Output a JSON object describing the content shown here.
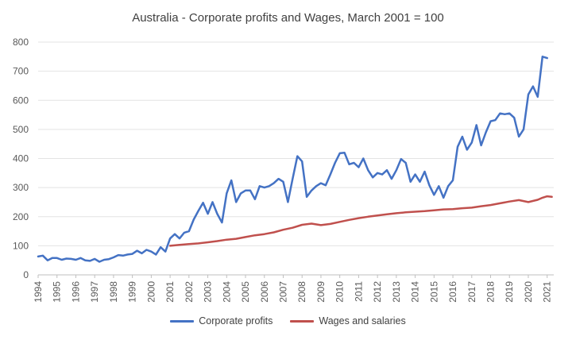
{
  "chart_data": {
    "type": "line",
    "title": "Australia - Corporate profits and Wages, March 2001 = 100",
    "xlabel": "",
    "ylabel": "",
    "ylim": [
      0,
      800
    ],
    "yticks": [
      0,
      100,
      200,
      300,
      400,
      500,
      600,
      700,
      800
    ],
    "x_range": [
      1994,
      2021.35
    ],
    "xticks": [
      "1994",
      "1995",
      "1996",
      "1997",
      "1998",
      "1999",
      "2000",
      "2001",
      "2002",
      "2003",
      "2004",
      "2005",
      "2006",
      "2007",
      "2008",
      "2009",
      "2010",
      "2011",
      "2012",
      "2013",
      "2014",
      "2015",
      "2016",
      "2017",
      "2018",
      "2019",
      "2020",
      "2021"
    ],
    "grid": "horizontal",
    "legend_position": "bottom",
    "series": [
      {
        "name": "Corporate profits",
        "color": "#4472c4",
        "points": [
          [
            1994.0,
            63
          ],
          [
            1994.25,
            66
          ],
          [
            1994.5,
            50
          ],
          [
            1994.75,
            58
          ],
          [
            1995.0,
            58
          ],
          [
            1995.25,
            52
          ],
          [
            1995.5,
            56
          ],
          [
            1995.75,
            55
          ],
          [
            1996.0,
            52
          ],
          [
            1996.25,
            58
          ],
          [
            1996.5,
            50
          ],
          [
            1996.75,
            48
          ],
          [
            1997.0,
            55
          ],
          [
            1997.25,
            45
          ],
          [
            1997.5,
            52
          ],
          [
            1997.75,
            54
          ],
          [
            1998.0,
            60
          ],
          [
            1998.25,
            68
          ],
          [
            1998.5,
            66
          ],
          [
            1998.75,
            70
          ],
          [
            1999.0,
            72
          ],
          [
            1999.25,
            83
          ],
          [
            1999.5,
            74
          ],
          [
            1999.75,
            86
          ],
          [
            2000.0,
            80
          ],
          [
            2000.25,
            70
          ],
          [
            2000.5,
            95
          ],
          [
            2000.75,
            80
          ],
          [
            2001.0,
            125
          ],
          [
            2001.25,
            140
          ],
          [
            2001.5,
            125
          ],
          [
            2001.75,
            145
          ],
          [
            2002.0,
            150
          ],
          [
            2002.25,
            190
          ],
          [
            2002.5,
            220
          ],
          [
            2002.75,
            248
          ],
          [
            2003.0,
            210
          ],
          [
            2003.25,
            250
          ],
          [
            2003.5,
            210
          ],
          [
            2003.75,
            180
          ],
          [
            2004.0,
            280
          ],
          [
            2004.25,
            325
          ],
          [
            2004.5,
            250
          ],
          [
            2004.75,
            280
          ],
          [
            2005.0,
            290
          ],
          [
            2005.25,
            290
          ],
          [
            2005.5,
            260
          ],
          [
            2005.75,
            305
          ],
          [
            2006.0,
            300
          ],
          [
            2006.25,
            305
          ],
          [
            2006.5,
            315
          ],
          [
            2006.75,
            330
          ],
          [
            2007.0,
            320
          ],
          [
            2007.25,
            250
          ],
          [
            2007.5,
            330
          ],
          [
            2007.75,
            408
          ],
          [
            2008.0,
            390
          ],
          [
            2008.25,
            268
          ],
          [
            2008.5,
            290
          ],
          [
            2008.75,
            305
          ],
          [
            2009.0,
            315
          ],
          [
            2009.25,
            308
          ],
          [
            2009.5,
            345
          ],
          [
            2009.75,
            385
          ],
          [
            2010.0,
            418
          ],
          [
            2010.25,
            420
          ],
          [
            2010.5,
            380
          ],
          [
            2010.75,
            385
          ],
          [
            2011.0,
            370
          ],
          [
            2011.25,
            400
          ],
          [
            2011.5,
            360
          ],
          [
            2011.75,
            335
          ],
          [
            2012.0,
            350
          ],
          [
            2012.25,
            345
          ],
          [
            2012.5,
            360
          ],
          [
            2012.75,
            330
          ],
          [
            2013.0,
            360
          ],
          [
            2013.25,
            398
          ],
          [
            2013.5,
            385
          ],
          [
            2013.75,
            320
          ],
          [
            2014.0,
            345
          ],
          [
            2014.25,
            320
          ],
          [
            2014.5,
            355
          ],
          [
            2014.75,
            308
          ],
          [
            2015.0,
            275
          ],
          [
            2015.25,
            305
          ],
          [
            2015.5,
            265
          ],
          [
            2015.75,
            305
          ],
          [
            2016.0,
            325
          ],
          [
            2016.25,
            440
          ],
          [
            2016.5,
            475
          ],
          [
            2016.75,
            430
          ],
          [
            2017.0,
            455
          ],
          [
            2017.25,
            515
          ],
          [
            2017.5,
            445
          ],
          [
            2017.75,
            490
          ],
          [
            2018.0,
            528
          ],
          [
            2018.25,
            532
          ],
          [
            2018.5,
            555
          ],
          [
            2018.75,
            552
          ],
          [
            2019.0,
            555
          ],
          [
            2019.25,
            540
          ],
          [
            2019.5,
            475
          ],
          [
            2019.75,
            500
          ],
          [
            2020.0,
            620
          ],
          [
            2020.25,
            648
          ],
          [
            2020.5,
            612
          ],
          [
            2020.75,
            750
          ],
          [
            2021.0,
            745
          ]
        ]
      },
      {
        "name": "Wages and salaries",
        "color": "#c0504d",
        "points": [
          [
            2001.0,
            100
          ],
          [
            2001.5,
            103
          ],
          [
            2002.0,
            106
          ],
          [
            2002.5,
            108
          ],
          [
            2003.0,
            112
          ],
          [
            2003.5,
            116
          ],
          [
            2004.0,
            121
          ],
          [
            2004.5,
            124
          ],
          [
            2005.0,
            130
          ],
          [
            2005.5,
            136
          ],
          [
            2006.0,
            140
          ],
          [
            2006.5,
            146
          ],
          [
            2007.0,
            155
          ],
          [
            2007.5,
            162
          ],
          [
            2008.0,
            172
          ],
          [
            2008.5,
            176
          ],
          [
            2009.0,
            171
          ],
          [
            2009.5,
            175
          ],
          [
            2010.0,
            182
          ],
          [
            2010.5,
            189
          ],
          [
            2011.0,
            195
          ],
          [
            2011.5,
            200
          ],
          [
            2012.0,
            204
          ],
          [
            2012.5,
            208
          ],
          [
            2013.0,
            212
          ],
          [
            2013.5,
            215
          ],
          [
            2014.0,
            217
          ],
          [
            2014.5,
            219
          ],
          [
            2015.0,
            222
          ],
          [
            2015.5,
            225
          ],
          [
            2016.0,
            226
          ],
          [
            2016.5,
            229
          ],
          [
            2017.0,
            231
          ],
          [
            2017.5,
            236
          ],
          [
            2018.0,
            240
          ],
          [
            2018.5,
            246
          ],
          [
            2019.0,
            252
          ],
          [
            2019.5,
            257
          ],
          [
            2020.0,
            250
          ],
          [
            2020.5,
            258
          ],
          [
            2020.75,
            265
          ],
          [
            2021.0,
            270
          ],
          [
            2021.25,
            268
          ]
        ]
      }
    ]
  }
}
